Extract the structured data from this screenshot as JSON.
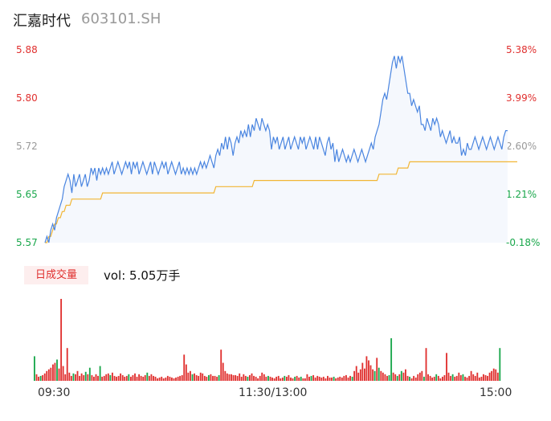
{
  "header": {
    "name": "汇嘉时代",
    "code": "603101.SH"
  },
  "colors": {
    "up": "#e0302f",
    "down": "#19a74b",
    "neutral": "#999999",
    "price": "#4a85e0",
    "avg": "#f2b635"
  },
  "volume_panel": {
    "badge": "日成交量",
    "text": "vol: 5.05万手"
  },
  "chart_data": [
    {
      "type": "line",
      "yaxis_left_ticks": [
        "5.88",
        "5.80",
        "5.72",
        "5.65",
        "5.57"
      ],
      "yaxis_right_ticks": [
        "5.38%",
        "3.99%",
        "2.60%",
        "1.21%",
        "-0.18%"
      ],
      "ylim": [
        5.57,
        5.88
      ],
      "x_tick_labels": [
        "09:30",
        "11:30/13:00",
        "15:00"
      ],
      "series": [
        {
          "key": "price",
          "values": [
            5.57,
            5.58,
            5.57,
            5.59,
            5.6,
            5.59,
            5.61,
            5.62,
            5.63,
            5.64,
            5.66,
            5.67,
            5.68,
            5.67,
            5.65,
            5.68,
            5.66,
            5.67,
            5.68,
            5.66,
            5.67,
            5.68,
            5.66,
            5.67,
            5.69,
            5.68,
            5.69,
            5.67,
            5.69,
            5.68,
            5.69,
            5.68,
            5.69,
            5.68,
            5.69,
            5.7,
            5.68,
            5.69,
            5.7,
            5.69,
            5.68,
            5.69,
            5.7,
            5.69,
            5.7,
            5.68,
            5.7,
            5.69,
            5.7,
            5.68,
            5.69,
            5.7,
            5.69,
            5.68,
            5.69,
            5.7,
            5.68,
            5.7,
            5.69,
            5.68,
            5.69,
            5.7,
            5.69,
            5.7,
            5.68,
            5.69,
            5.7,
            5.69,
            5.68,
            5.69,
            5.7,
            5.68,
            5.69,
            5.68,
            5.69,
            5.68,
            5.69,
            5.68,
            5.69,
            5.68,
            5.69,
            5.7,
            5.69,
            5.7,
            5.69,
            5.7,
            5.71,
            5.7,
            5.69,
            5.71,
            5.72,
            5.71,
            5.73,
            5.72,
            5.74,
            5.72,
            5.74,
            5.73,
            5.71,
            5.73,
            5.74,
            5.73,
            5.75,
            5.74,
            5.75,
            5.74,
            5.76,
            5.74,
            5.76,
            5.75,
            5.77,
            5.76,
            5.75,
            5.77,
            5.76,
            5.75,
            5.76,
            5.75,
            5.72,
            5.74,
            5.73,
            5.74,
            5.72,
            5.73,
            5.74,
            5.72,
            5.73,
            5.74,
            5.72,
            5.73,
            5.74,
            5.73,
            5.72,
            5.74,
            5.73,
            5.74,
            5.72,
            5.73,
            5.74,
            5.73,
            5.72,
            5.74,
            5.72,
            5.74,
            5.73,
            5.72,
            5.71,
            5.73,
            5.74,
            5.72,
            5.73,
            5.7,
            5.72,
            5.7,
            5.71,
            5.72,
            5.71,
            5.7,
            5.71,
            5.7,
            5.71,
            5.72,
            5.71,
            5.7,
            5.71,
            5.72,
            5.71,
            5.7,
            5.71,
            5.72,
            5.73,
            5.72,
            5.74,
            5.75,
            5.76,
            5.78,
            5.8,
            5.81,
            5.8,
            5.82,
            5.84,
            5.86,
            5.87,
            5.85,
            5.87,
            5.86,
            5.87,
            5.85,
            5.83,
            5.81,
            5.81,
            5.79,
            5.8,
            5.79,
            5.78,
            5.79,
            5.76,
            5.76,
            5.75,
            5.77,
            5.76,
            5.75,
            5.77,
            5.76,
            5.77,
            5.76,
            5.74,
            5.75,
            5.74,
            5.73,
            5.74,
            5.75,
            5.73,
            5.74,
            5.73,
            5.73,
            5.74,
            5.71,
            5.72,
            5.71,
            5.73,
            5.72,
            5.72,
            5.73,
            5.74,
            5.73,
            5.72,
            5.73,
            5.74,
            5.73,
            5.72,
            5.73,
            5.74,
            5.73,
            5.72,
            5.73,
            5.74,
            5.73,
            5.72,
            5.74,
            5.75,
            5.75
          ]
        },
        {
          "key": "avg",
          "values": [
            5.57,
            5.57,
            5.58,
            5.58,
            5.59,
            5.6,
            5.6,
            5.61,
            5.61,
            5.62,
            5.62,
            5.63,
            5.63,
            5.63,
            5.64,
            5.64,
            5.64,
            5.64,
            5.64,
            5.64,
            5.64,
            5.64,
            5.64,
            5.64,
            5.64,
            5.64,
            5.64,
            5.64,
            5.64,
            5.64,
            5.65,
            5.65,
            5.65,
            5.65,
            5.65,
            5.65,
            5.65,
            5.65,
            5.65,
            5.65,
            5.65,
            5.65,
            5.65,
            5.65,
            5.65,
            5.65,
            5.65,
            5.65,
            5.65,
            5.65,
            5.65,
            5.65,
            5.65,
            5.65,
            5.65,
            5.65,
            5.65,
            5.65,
            5.65,
            5.65,
            5.65,
            5.65,
            5.65,
            5.65,
            5.65,
            5.65,
            5.65,
            5.65,
            5.65,
            5.65,
            5.65,
            5.65,
            5.65,
            5.65,
            5.65,
            5.65,
            5.65,
            5.65,
            5.65,
            5.65,
            5.65,
            5.65,
            5.65,
            5.65,
            5.65,
            5.65,
            5.65,
            5.65,
            5.65,
            5.66,
            5.66,
            5.66,
            5.66,
            5.66,
            5.66,
            5.66,
            5.66,
            5.66,
            5.66,
            5.66,
            5.66,
            5.66,
            5.66,
            5.66,
            5.66,
            5.66,
            5.66,
            5.66,
            5.66,
            5.67,
            5.67,
            5.67,
            5.67,
            5.67,
            5.67,
            5.67,
            5.67,
            5.67,
            5.67,
            5.67,
            5.67,
            5.67,
            5.67,
            5.67,
            5.67,
            5.67,
            5.67,
            5.67,
            5.67,
            5.67,
            5.67,
            5.67,
            5.67,
            5.67,
            5.67,
            5.67,
            5.67,
            5.67,
            5.67,
            5.67,
            5.67,
            5.67,
            5.67,
            5.67,
            5.67,
            5.67,
            5.67,
            5.67,
            5.67,
            5.67,
            5.67,
            5.67,
            5.67,
            5.67,
            5.67,
            5.67,
            5.67,
            5.67,
            5.67,
            5.67,
            5.67,
            5.67,
            5.67,
            5.67,
            5.67,
            5.67,
            5.67,
            5.67,
            5.67,
            5.67,
            5.67,
            5.67,
            5.67,
            5.67,
            5.68,
            5.68,
            5.68,
            5.68,
            5.68,
            5.68,
            5.68,
            5.68,
            5.68,
            5.68,
            5.69,
            5.69,
            5.69,
            5.69,
            5.69,
            5.69,
            5.7,
            5.7,
            5.7,
            5.7,
            5.7,
            5.7,
            5.7,
            5.7,
            5.7,
            5.7,
            5.7,
            5.7,
            5.7,
            5.7,
            5.7,
            5.7,
            5.7,
            5.7,
            5.7,
            5.7,
            5.7,
            5.7,
            5.7,
            5.7,
            5.7,
            5.7,
            5.7,
            5.7,
            5.7,
            5.7,
            5.7,
            5.7,
            5.7,
            5.7,
            5.7,
            5.7,
            5.7,
            5.7,
            5.7,
            5.7,
            5.7,
            5.7,
            5.7,
            5.7,
            5.7,
            5.7,
            5.7,
            5.7,
            5.7,
            5.7,
            5.7,
            5.7,
            5.7,
            5.7,
            5.7,
            5.7,
            5.7
          ]
        }
      ]
    },
    {
      "type": "bar",
      "volumes": [
        30,
        8,
        5,
        6,
        7,
        9,
        12,
        14,
        16,
        20,
        22,
        26,
        15,
        100,
        18,
        8,
        40,
        10,
        6,
        9,
        8,
        12,
        6,
        9,
        7,
        11,
        8,
        16,
        7,
        5,
        8,
        6,
        18,
        5,
        6,
        8,
        9,
        7,
        10,
        6,
        5,
        6,
        9,
        7,
        5,
        6,
        8,
        5,
        7,
        9,
        5,
        8,
        6,
        5,
        7,
        10,
        6,
        8,
        6,
        5,
        3,
        4,
        5,
        3,
        4,
        6,
        5,
        4,
        3,
        4,
        5,
        6,
        7,
        32,
        20,
        10,
        12,
        8,
        9,
        7,
        6,
        10,
        9,
        6,
        5,
        7,
        8,
        6,
        6,
        5,
        7,
        38,
        22,
        12,
        9,
        8,
        8,
        7,
        7,
        6,
        9,
        5,
        8,
        6,
        5,
        7,
        9,
        6,
        5,
        3,
        6,
        10,
        8,
        5,
        6,
        5,
        4,
        3,
        5,
        6,
        3,
        4,
        6,
        5,
        7,
        4,
        3,
        5,
        6,
        4,
        5,
        3,
        3,
        8,
        5,
        6,
        7,
        4,
        6,
        5,
        4,
        5,
        3,
        6,
        4,
        4,
        5,
        3,
        4,
        5,
        4,
        6,
        7,
        4,
        6,
        5,
        12,
        18,
        10,
        14,
        22,
        15,
        30,
        25,
        19,
        14,
        12,
        28,
        16,
        12,
        10,
        8,
        6,
        7,
        52,
        10,
        8,
        6,
        8,
        12,
        10,
        14,
        6,
        5,
        3,
        6,
        4,
        8,
        10,
        12,
        5,
        40,
        8,
        6,
        4,
        5,
        8,
        6,
        3,
        5,
        7,
        34,
        10,
        6,
        8,
        5,
        6,
        10,
        7,
        8,
        5,
        4,
        6,
        12,
        8,
        6,
        10,
        4,
        5,
        8,
        7,
        6,
        10,
        12,
        15,
        14,
        10,
        40
      ],
      "colors": [
        "down",
        "up",
        "up",
        "down",
        "up",
        "up",
        "up",
        "up",
        "up",
        "up",
        "up",
        "down",
        "up",
        "up",
        "up",
        "up",
        "up",
        "up",
        "up",
        "down",
        "up",
        "up",
        "up",
        "up",
        "up",
        "down",
        "up",
        "down",
        "up",
        "up",
        "up",
        "up",
        "down",
        "up",
        "up",
        "up",
        "up",
        "down",
        "up",
        "up",
        "up",
        "up",
        "up",
        "up",
        "up",
        "up",
        "down",
        "up",
        "up",
        "up",
        "up",
        "up",
        "up",
        "up",
        "up",
        "down",
        "up",
        "up",
        "up",
        "up",
        "up",
        "up",
        "up",
        "up",
        "up",
        "up",
        "up",
        "up",
        "up",
        "up",
        "up",
        "up",
        "up",
        "up",
        "up",
        "up",
        "up",
        "down",
        "up",
        "up",
        "up",
        "up",
        "up",
        "up",
        "up",
        "down",
        "up",
        "up",
        "up",
        "up",
        "down",
        "up",
        "up",
        "up",
        "up",
        "up",
        "up",
        "up",
        "up",
        "up",
        "up",
        "up",
        "up",
        "up",
        "down",
        "up",
        "up",
        "up",
        "up",
        "up",
        "up",
        "up",
        "up",
        "up",
        "down",
        "up",
        "up",
        "up",
        "up",
        "up",
        "up",
        "up",
        "down",
        "up",
        "up",
        "up",
        "up",
        "down",
        "up",
        "up",
        "down",
        "up",
        "up",
        "up",
        "up",
        "down",
        "up",
        "up",
        "up",
        "up",
        "up",
        "up",
        "up",
        "up",
        "up",
        "up",
        "down",
        "up",
        "up",
        "up",
        "up",
        "up",
        "up",
        "up",
        "up",
        "down",
        "up",
        "up",
        "up",
        "up",
        "up",
        "up",
        "up",
        "up",
        "up",
        "up",
        "down",
        "up",
        "down",
        "up",
        "up",
        "up",
        "up",
        "down",
        "down",
        "up",
        "up",
        "down",
        "up",
        "down",
        "up",
        "up",
        "up",
        "down",
        "up",
        "up",
        "up",
        "up",
        "up",
        "up",
        "down",
        "up",
        "up",
        "up",
        "up",
        "up",
        "down",
        "up",
        "up",
        "up",
        "up",
        "up",
        "up",
        "up",
        "down",
        "up",
        "up",
        "up",
        "up",
        "down",
        "up",
        "up",
        "up",
        "up",
        "up",
        "up",
        "up",
        "up",
        "up",
        "up",
        "up",
        "up",
        "up",
        "up",
        "up",
        "up",
        "up",
        "down",
        "up",
        "up",
        "up",
        "up",
        "up",
        "down"
      ]
    }
  ]
}
